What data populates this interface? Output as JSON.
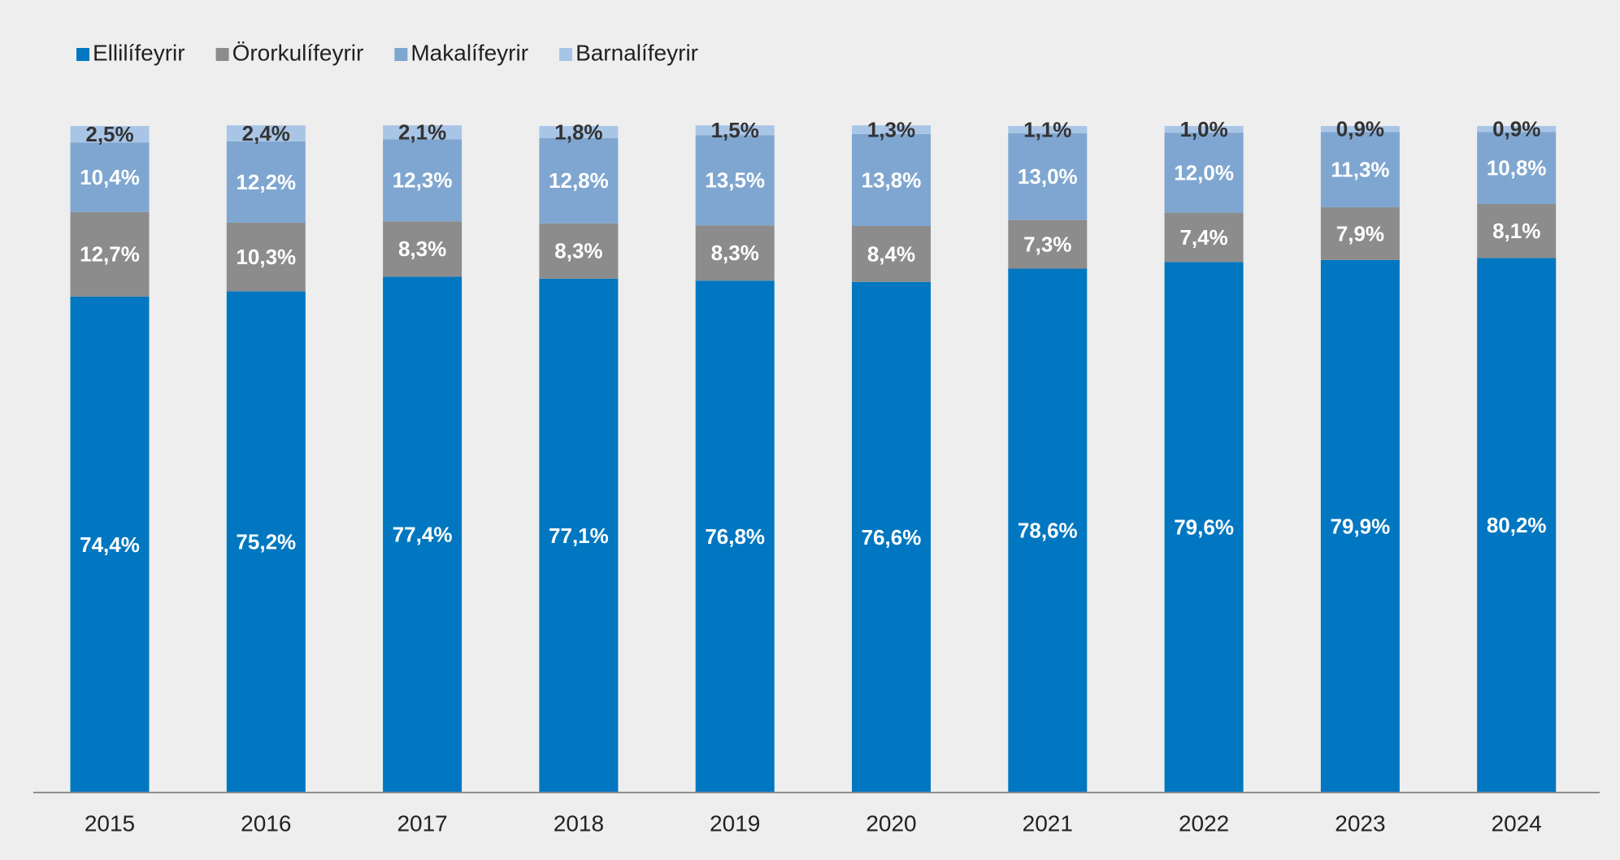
{
  "chart_data": {
    "type": "stacked_bar",
    "categories": [
      "2015",
      "2016",
      "2017",
      "2018",
      "2019",
      "2020",
      "2021",
      "2022",
      "2023",
      "2024"
    ],
    "series": [
      {
        "name": "Ellilífeyrir",
        "color": "#0077c0",
        "label_color": "#ffffff",
        "values": [
          74.4,
          75.2,
          77.4,
          77.1,
          76.8,
          76.6,
          78.6,
          79.6,
          79.9,
          80.2
        ],
        "value_labels": [
          "74,4%",
          "75,2%",
          "77,4%",
          "77,1%",
          "76,8%",
          "76,6%",
          "78,6%",
          "79,6%",
          "79,9%",
          "80,2%"
        ]
      },
      {
        "name": "Örorkulífeyrir",
        "color": "#8c8c8c",
        "label_color": "#ffffff",
        "values": [
          12.7,
          10.3,
          8.3,
          8.3,
          8.3,
          8.4,
          7.3,
          7.4,
          7.9,
          8.1
        ],
        "value_labels": [
          "12,7%",
          "10,3%",
          "8,3%",
          "8,3%",
          "8,3%",
          "8,4%",
          "7,3%",
          "7,4%",
          "7,9%",
          "8,1%"
        ]
      },
      {
        "name": "Makalífeyrir",
        "color": "#7fa6d0",
        "label_color": "#ffffff",
        "values": [
          10.4,
          12.2,
          12.3,
          12.8,
          13.5,
          13.8,
          13.0,
          12.0,
          11.3,
          10.8
        ],
        "value_labels": [
          "10,4%",
          "12,2%",
          "12,3%",
          "12,8%",
          "13,5%",
          "13,8%",
          "13,0%",
          "12,0%",
          "11,3%",
          "10,8%"
        ]
      },
      {
        "name": "Barnalífeyrir",
        "color": "#a9c5e6",
        "label_color": "#333333",
        "values": [
          2.5,
          2.4,
          2.1,
          1.8,
          1.5,
          1.3,
          1.1,
          1.0,
          0.9,
          0.9
        ],
        "value_labels": [
          "2,5%",
          "2,4%",
          "2,1%",
          "1,8%",
          "1,5%",
          "1,3%",
          "1,1%",
          "1,0%",
          "0,9%",
          "0,9%"
        ]
      }
    ],
    "ylim": [
      0,
      100
    ],
    "legend": "top-left"
  }
}
